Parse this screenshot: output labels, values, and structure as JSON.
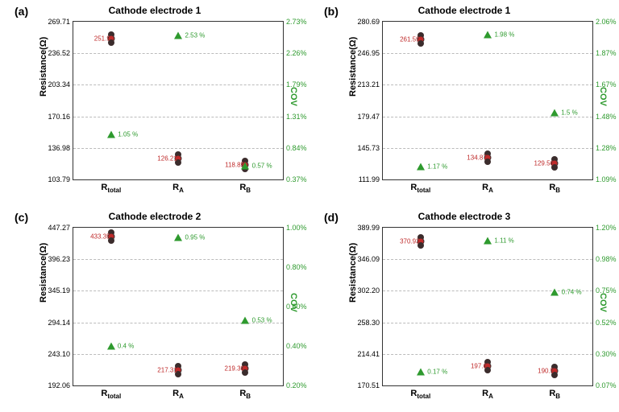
{
  "figure": {
    "background": "#ffffff",
    "grid_line": "#bbbbbb",
    "axis_line": "#333333",
    "resistance_color": "#000000",
    "cov_color": "#2e9a2e",
    "point_outer": "#3b2c2c",
    "point_inner": "#bf2a2a",
    "cov_marker": "triangle-up",
    "y_left_label": "Resistance(Ω)",
    "y_right_label": "COV",
    "xcats": [
      "R_total",
      "R_A",
      "R_B"
    ]
  },
  "panels": [
    {
      "letter": "(a)",
      "title": "Cathode electrode 1",
      "x": [
        "R_total",
        "R_A",
        "R_B"
      ],
      "y_left": {
        "min": 103.79,
        "max": 269.71,
        "ticks": [
          103.79,
          136.98,
          170.16,
          203.34,
          236.52,
          269.71
        ]
      },
      "y_right": {
        "min": 0.0037,
        "max": 0.0273,
        "ticks": [
          "0.37%",
          "0.84%",
          "1.31%",
          "1.79%",
          "2.26%",
          "2.73%"
        ]
      },
      "resistance": [
        {
          "val": 251.9,
          "label": "251.9"
        },
        {
          "val": 126.21,
          "label": "126.21"
        },
        {
          "val": 118.85,
          "label": "118.85"
        }
      ],
      "cov": [
        {
          "val": 0.0105,
          "label": "1.05 %"
        },
        {
          "val": 0.0253,
          "label": "2.53 %"
        },
        {
          "val": 0.0057,
          "label": "0.57 %"
        }
      ]
    },
    {
      "letter": "(b)",
      "title": "Cathode electrode 1",
      "x": [
        "R_total",
        "R_A",
        "R_B"
      ],
      "y_left": {
        "min": 111.99,
        "max": 280.69,
        "ticks": [
          111.99,
          145.73,
          179.47,
          213.21,
          246.95,
          280.69
        ]
      },
      "y_right": {
        "min": 0.0109,
        "max": 0.0206,
        "ticks": [
          "1.09%",
          "1.28%",
          "1.48%",
          "1.67%",
          "1.87%",
          "2.06%"
        ]
      },
      "resistance": [
        {
          "val": 261.59,
          "label": "261.59"
        },
        {
          "val": 134.87,
          "label": "134.87"
        },
        {
          "val": 129.56,
          "label": "129.56"
        }
      ],
      "cov": [
        {
          "val": 0.0117,
          "label": "1.17 %"
        },
        {
          "val": 0.0198,
          "label": "1.98 %"
        },
        {
          "val": 0.015,
          "label": "1.5 %"
        }
      ]
    },
    {
      "letter": "(c)",
      "title": "Cathode electrode 2",
      "x": [
        "R_total",
        "R_A",
        "R_B"
      ],
      "y_left": {
        "min": 192.06,
        "max": 447.27,
        "ticks": [
          192.06,
          243.1,
          294.14,
          345.19,
          396.23,
          447.27
        ]
      },
      "y_right": {
        "min": 0.002,
        "max": 0.01,
        "ticks": [
          "0.20%",
          "0.40%",
          "0.60%",
          "0.80%",
          "1.00%"
        ]
      },
      "resistance": [
        {
          "val": 433.35,
          "label": "433.35"
        },
        {
          "val": 217.31,
          "label": "217.31"
        },
        {
          "val": 219.3,
          "label": "219.30"
        }
      ],
      "cov": [
        {
          "val": 0.004,
          "label": "0.4 %"
        },
        {
          "val": 0.0095,
          "label": "0.95 %"
        },
        {
          "val": 0.0053,
          "label": "0.53 %"
        }
      ]
    },
    {
      "letter": "(d)",
      "title": "Cathode electrode 3",
      "x": [
        "R_total",
        "R_A",
        "R_B"
      ],
      "y_left": {
        "min": 170.51,
        "max": 389.99,
        "ticks": [
          170.51,
          214.41,
          258.3,
          302.2,
          346.09,
          389.99
        ]
      },
      "y_right": {
        "min": 0.0007,
        "max": 0.012,
        "ticks": [
          "0.07%",
          "0.30%",
          "0.52%",
          "0.75%",
          "0.98%",
          "1.20%"
        ]
      },
      "resistance": [
        {
          "val": 370.93,
          "label": "370.93"
        },
        {
          "val": 197.6,
          "label": "197.6"
        },
        {
          "val": 190.5,
          "label": "190.5"
        }
      ],
      "cov": [
        {
          "val": 0.0017,
          "label": "0.17 %"
        },
        {
          "val": 0.0111,
          "label": "1.11 %"
        },
        {
          "val": 0.0074,
          "label": "0.74 %"
        }
      ]
    }
  ]
}
